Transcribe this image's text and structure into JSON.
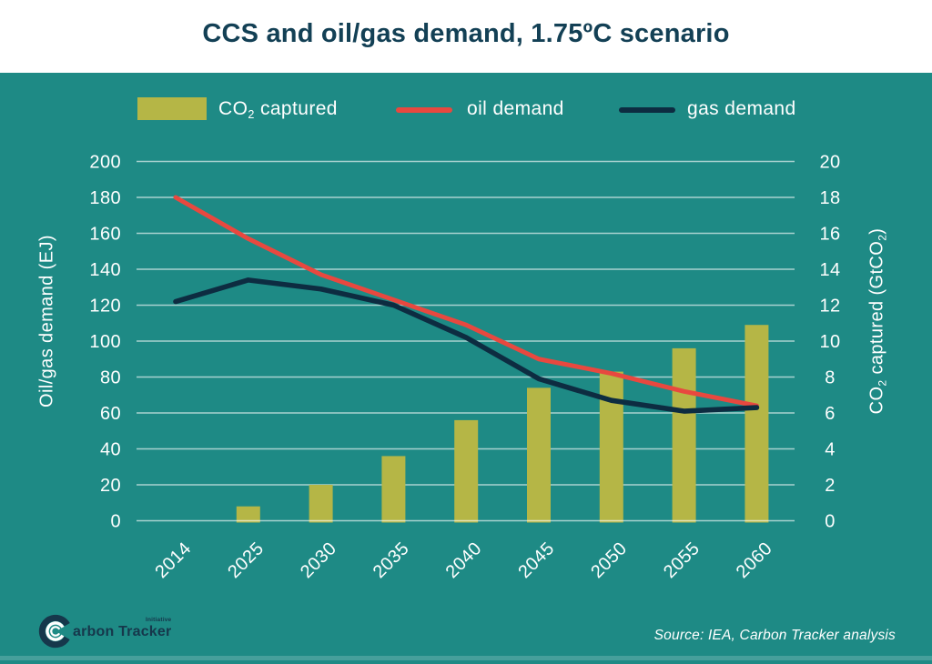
{
  "header": {
    "title": "CCS and oil/gas demand, 1.75ºC scenario"
  },
  "legend": {
    "co2": {
      "pre": "CO",
      "sub": "2",
      "post": " captured"
    },
    "oil": "oil demand",
    "gas": "gas demand"
  },
  "axes": {
    "left_title": "Oil/gas demand (EJ)",
    "right_title": {
      "pre": "CO",
      "sub": "2",
      "mid": " captured (GtCO",
      "sub2": "2",
      "post": ")"
    }
  },
  "chart_data": {
    "type": "bar+line combo",
    "title": "CCS and oil/gas demand, 1.75ºC scenario",
    "categories": [
      "2014",
      "2025",
      "2030",
      "2035",
      "2040",
      "2045",
      "2050",
      "2055",
      "2060"
    ],
    "series": [
      {
        "name": "CO2 captured",
        "type": "bar",
        "axis": "right",
        "unit": "GtCO2",
        "color": "#b5b646",
        "values": [
          0,
          0.8,
          2.0,
          3.6,
          5.6,
          7.4,
          8.3,
          9.6,
          10.9
        ]
      },
      {
        "name": "oil demand",
        "type": "line",
        "axis": "left",
        "unit": "EJ",
        "color": "#e8483f",
        "values": [
          180,
          157,
          137,
          123,
          109,
          90,
          82,
          72,
          64
        ]
      },
      {
        "name": "gas demand",
        "type": "line",
        "axis": "left",
        "unit": "EJ",
        "color": "#0d2c41",
        "values": [
          122,
          134,
          129,
          120,
          102,
          79,
          67,
          61,
          63
        ]
      }
    ],
    "left_axis": {
      "label": "Oil/gas demand (EJ)",
      "min": 0,
      "max": 200,
      "ticks": [
        0,
        20,
        40,
        60,
        80,
        100,
        120,
        140,
        160,
        180,
        200
      ]
    },
    "right_axis": {
      "label": "CO2 captured (GtCO2)",
      "min": 0,
      "max": 20,
      "ticks": [
        0,
        2,
        4,
        6,
        8,
        10,
        12,
        14,
        16,
        18,
        20
      ]
    },
    "grid": true,
    "legend_position": "top"
  },
  "footer": {
    "logo_text": "arbon Tracker",
    "initiative": "Initiative",
    "source": "Source: IEA, Carbon Tracker analysis"
  },
  "colors": {
    "background_teal": "#1e8a85",
    "header_background": "#ffffff",
    "title_text": "#134055",
    "bar_olive": "#b5b646",
    "oil_line_red": "#e8483f",
    "gas_line_navy": "#0d2c41",
    "gridline": "rgba(255,255,255,0.62)",
    "axis_text": "#ffffff",
    "logo_navy": "#16374b"
  }
}
